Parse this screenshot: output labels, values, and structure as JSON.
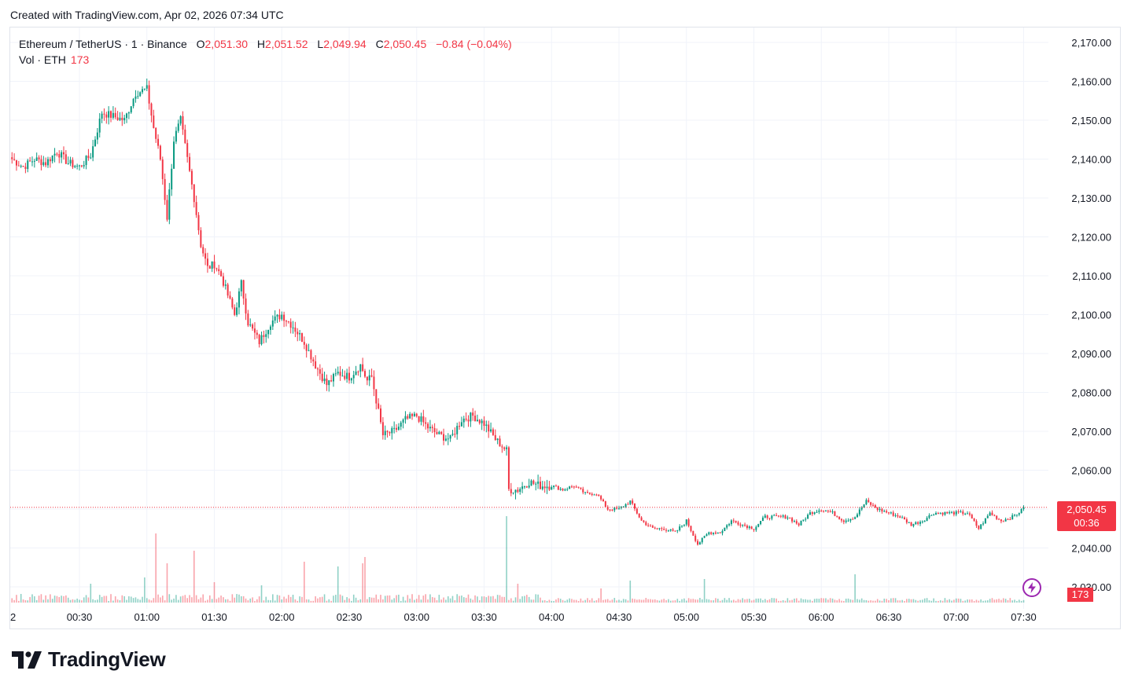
{
  "header": {
    "created": "Created with TradingView.com, Apr 02, 2026 07:34 UTC"
  },
  "legend": {
    "symbol": "Ethereum / TetherUS · 1 · Binance",
    "o_label": "O",
    "o_value": "2,051.30",
    "h_label": "H",
    "h_value": "2,051.52",
    "l_label": "L",
    "l_value": "2,049.94",
    "c_label": "C",
    "c_value": "2,050.45",
    "change": "−0.84 (−0.04%)",
    "vol_label": "Vol · ETH",
    "vol_value": "173"
  },
  "price_tag": {
    "price": "2,050.45",
    "countdown": "00:36"
  },
  "volume_tag": "173",
  "brand": {
    "name": "TradingView"
  },
  "colors": {
    "up": "#089981",
    "down": "#f23645",
    "grid": "#f0f3fa",
    "text": "#131722",
    "accent": "#9c27b0"
  },
  "icons": {
    "logo": "tradingview-logo-icon",
    "alert": "lightning-bolt-icon"
  },
  "chart_data": {
    "type": "candlestick",
    "symbol": "ETHUSDT",
    "interval": "1 minute",
    "exchange": "Binance",
    "y_axis": {
      "min": 2030,
      "max": 2170,
      "ticks": [
        "2,170.00",
        "2,160.00",
        "2,150.00",
        "2,140.00",
        "2,130.00",
        "2,120.00",
        "2,110.00",
        "2,100.00",
        "2,090.00",
        "2,080.00",
        "2,070.00",
        "2,060.00",
        "2,040.00",
        "2,030.00"
      ]
    },
    "x_axis": {
      "ticks": [
        "2",
        "00:30",
        "01:00",
        "01:30",
        "02:00",
        "02:30",
        "03:00",
        "03:30",
        "04:00",
        "04:30",
        "05:00",
        "05:30",
        "06:00",
        "06:30",
        "07:00",
        "07:30"
      ]
    },
    "last_price": 2050.45,
    "price_path": [
      [
        "00:00",
        2140
      ],
      [
        "00:05",
        2138
      ],
      [
        "00:10",
        2140
      ],
      [
        "00:15",
        2139
      ],
      [
        "00:20",
        2142
      ],
      [
        "00:25",
        2139
      ],
      [
        "00:30",
        2138
      ],
      [
        "00:35",
        2141
      ],
      [
        "00:40",
        2152
      ],
      [
        "00:45",
        2151
      ],
      [
        "00:50",
        2150
      ],
      [
        "00:55",
        2157
      ],
      [
        "01:00",
        2158
      ],
      [
        "01:03",
        2148
      ],
      [
        "01:06",
        2140
      ],
      [
        "01:09",
        2125
      ],
      [
        "01:12",
        2145
      ],
      [
        "01:15",
        2150
      ],
      [
        "01:18",
        2140
      ],
      [
        "01:21",
        2130
      ],
      [
        "01:24",
        2118
      ],
      [
        "01:27",
        2112
      ],
      [
        "01:30",
        2113
      ],
      [
        "01:33",
        2110
      ],
      [
        "01:36",
        2105
      ],
      [
        "01:39",
        2100
      ],
      [
        "01:42",
        2108
      ],
      [
        "01:45",
        2098
      ],
      [
        "01:50",
        2093
      ],
      [
        "01:55",
        2098
      ],
      [
        "02:00",
        2100
      ],
      [
        "02:05",
        2097
      ],
      [
        "02:10",
        2093
      ],
      [
        "02:15",
        2087
      ],
      [
        "02:20",
        2082
      ],
      [
        "02:25",
        2085
      ],
      [
        "02:30",
        2084
      ],
      [
        "02:35",
        2087
      ],
      [
        "02:38",
        2083
      ],
      [
        "02:40",
        2084
      ],
      [
        "02:45",
        2069
      ],
      [
        "02:50",
        2070
      ],
      [
        "02:55",
        2073
      ],
      [
        "03:00",
        2074
      ],
      [
        "03:05",
        2071
      ],
      [
        "03:10",
        2069
      ],
      [
        "03:15",
        2068
      ],
      [
        "03:20",
        2073
      ],
      [
        "03:25",
        2074
      ],
      [
        "03:30",
        2072
      ],
      [
        "03:35",
        2068
      ],
      [
        "03:40",
        2065
      ],
      [
        "03:41",
        2055
      ],
      [
        "03:45",
        2055
      ],
      [
        "03:50",
        2057
      ],
      [
        "03:55",
        2056
      ],
      [
        "04:00",
        2056
      ],
      [
        "04:05",
        2055
      ],
      [
        "04:10",
        2056
      ],
      [
        "04:15",
        2054
      ],
      [
        "04:20",
        2054
      ],
      [
        "04:25",
        2050
      ],
      [
        "04:30",
        2050
      ],
      [
        "04:35",
        2052
      ],
      [
        "04:40",
        2047
      ],
      [
        "04:45",
        2045
      ],
      [
        "04:50",
        2045
      ],
      [
        "04:55",
        2044
      ],
      [
        "05:00",
        2047
      ],
      [
        "05:05",
        2041
      ],
      [
        "05:10",
        2044
      ],
      [
        "05:15",
        2044
      ],
      [
        "05:20",
        2047
      ],
      [
        "05:25",
        2046
      ],
      [
        "05:30",
        2045
      ],
      [
        "05:35",
        2048
      ],
      [
        "05:40",
        2048
      ],
      [
        "05:45",
        2048
      ],
      [
        "05:50",
        2046
      ],
      [
        "05:55",
        2049
      ],
      [
        "06:00",
        2050
      ],
      [
        "06:05",
        2049
      ],
      [
        "06:10",
        2047
      ],
      [
        "06:15",
        2048
      ],
      [
        "06:20",
        2052
      ],
      [
        "06:25",
        2050
      ],
      [
        "06:30",
        2049
      ],
      [
        "06:35",
        2048
      ],
      [
        "06:40",
        2046
      ],
      [
        "06:45",
        2047
      ],
      [
        "06:50",
        2049
      ],
      [
        "06:55",
        2049
      ],
      [
        "07:00",
        2049
      ],
      [
        "07:05",
        2049
      ],
      [
        "07:10",
        2045
      ],
      [
        "07:15",
        2049
      ],
      [
        "07:20",
        2047
      ],
      [
        "07:25",
        2048
      ],
      [
        "07:30",
        2050
      ]
    ],
    "volume_spikes": [
      [
        "00:35",
        24
      ],
      [
        "00:59",
        32
      ],
      [
        "01:04",
        88
      ],
      [
        "01:09",
        50
      ],
      [
        "01:21",
        66
      ],
      [
        "01:30",
        26
      ],
      [
        "01:51",
        22
      ],
      [
        "02:10",
        52
      ],
      [
        "02:25",
        46
      ],
      [
        "02:36",
        50
      ],
      [
        "02:37",
        58
      ],
      [
        "03:40",
        110
      ],
      [
        "03:45",
        24
      ],
      [
        "04:22",
        18
      ],
      [
        "04:35",
        28
      ],
      [
        "05:08",
        30
      ],
      [
        "06:15",
        36
      ]
    ]
  }
}
